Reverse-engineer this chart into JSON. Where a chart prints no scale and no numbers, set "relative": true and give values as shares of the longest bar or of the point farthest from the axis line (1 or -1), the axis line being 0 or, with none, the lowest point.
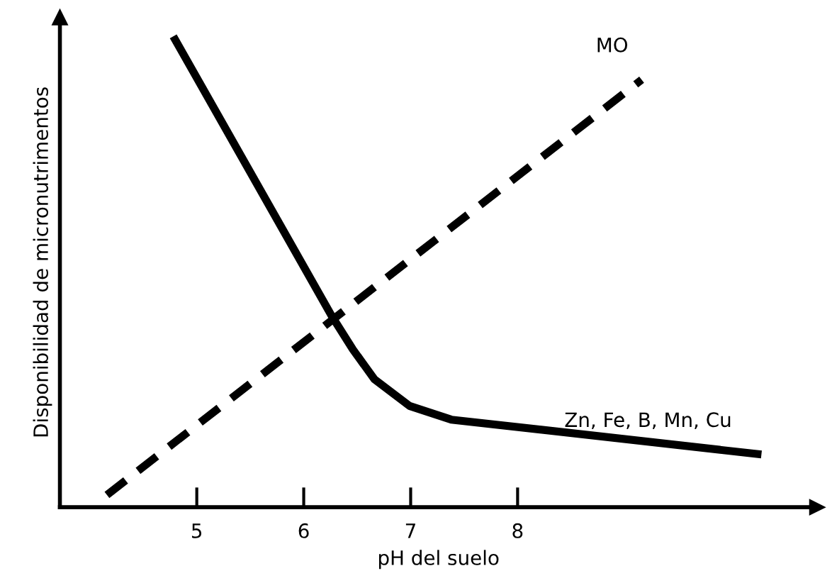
{
  "chart_data": {
    "type": "line",
    "xlabel": "pH del suelo",
    "ylabel": "Disponibilidad de micronutrimentos",
    "relative": true,
    "tick_labels": "x",
    "grid": false,
    "marker": "none",
    "xlim": [
      3.72,
      10.8
    ],
    "xticks": [
      5,
      6,
      7,
      8
    ],
    "series": [
      {
        "name": "Zn, Fe, B, Mn, Cu",
        "color": "#000000",
        "line_style": "solid",
        "x": [
          4.78,
          6.26,
          6.46,
          6.66,
          6.99,
          7.38,
          10.28
        ],
        "values": [
          1,
          0.407,
          0.335,
          0.272,
          0.215,
          0.186,
          0.112
        ]
      },
      {
        "name": "MO",
        "color": "#000000",
        "line_style": "dashed",
        "x": [
          4.16,
          9.16
        ],
        "values": [
          0.026,
          0.908
        ]
      }
    ]
  }
}
